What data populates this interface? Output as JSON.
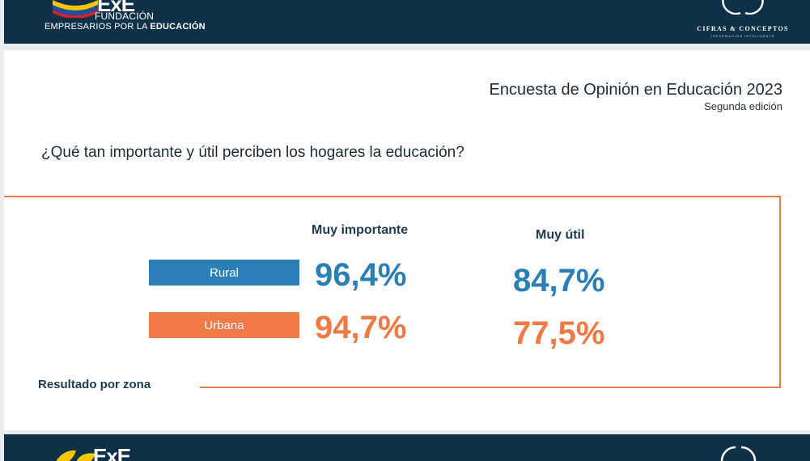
{
  "header": {
    "logo_left_mark": "ExE",
    "org_line1": "FUNDACIÓN",
    "org_line2_a": "EMPRESARIOS POR LA ",
    "org_line2_b": "EDUCACIÓN",
    "right_logo_name": "CIFRAS & CONCEPTOS",
    "right_logo_tagline": "INFORMACIÓN INTELIGENTE"
  },
  "slide": {
    "survey_title": "Encuesta de Opinión en Educación 2023",
    "survey_subtitle": "Segunda edición",
    "question": "¿Qué tan importante y útil perciben los hogares la educación?",
    "columns": {
      "importance": "Muy importante",
      "utility": "Muy útil"
    },
    "rows": [
      {
        "zone": "Rural",
        "importance": "96,4%",
        "utility": "84,7%",
        "color": "#2a7fb6"
      },
      {
        "zone": "Urbana",
        "importance": "94,7%",
        "utility": "77,5%",
        "color": "#ef7a46"
      }
    ],
    "footer_label": "Resultado por zona"
  },
  "footer": {
    "logo_left_mark": "ExE"
  },
  "colors": {
    "navy": "#0e3148",
    "accent_orange": "#ef7a46",
    "accent_blue": "#2a7fb6"
  }
}
